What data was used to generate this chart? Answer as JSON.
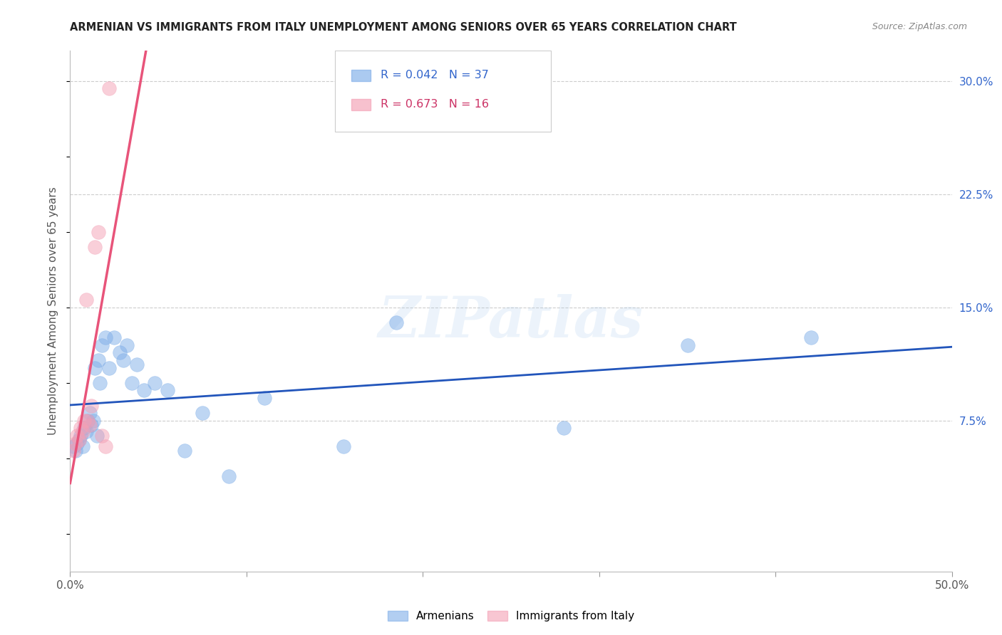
{
  "title": "ARMENIAN VS IMMIGRANTS FROM ITALY UNEMPLOYMENT AMONG SENIORS OVER 65 YEARS CORRELATION CHART",
  "source": "Source: ZipAtlas.com",
  "ylabel": "Unemployment Among Seniors over 65 years",
  "xlim": [
    0.0,
    0.5
  ],
  "ylim": [
    -0.025,
    0.32
  ],
  "xticks": [
    0.0,
    0.1,
    0.2,
    0.3,
    0.4,
    0.5
  ],
  "xticklabels": [
    "0.0%",
    "",
    "",
    "",
    "",
    "50.0%"
  ],
  "yticks_right": [
    0.075,
    0.15,
    0.225,
    0.3
  ],
  "yticklabels_right": [
    "7.5%",
    "15.0%",
    "22.5%",
    "30.0%"
  ],
  "armenians_x": [
    0.002,
    0.003,
    0.004,
    0.005,
    0.006,
    0.007,
    0.008,
    0.009,
    0.01,
    0.011,
    0.012,
    0.013,
    0.014,
    0.015,
    0.016,
    0.017,
    0.018,
    0.02,
    0.022,
    0.025,
    0.028,
    0.03,
    0.032,
    0.035,
    0.038,
    0.042,
    0.048,
    0.055,
    0.065,
    0.075,
    0.09,
    0.11,
    0.155,
    0.185,
    0.28,
    0.35,
    0.42
  ],
  "armenians_y": [
    0.058,
    0.055,
    0.06,
    0.062,
    0.065,
    0.058,
    0.07,
    0.068,
    0.075,
    0.08,
    0.072,
    0.075,
    0.11,
    0.065,
    0.115,
    0.1,
    0.125,
    0.13,
    0.11,
    0.13,
    0.12,
    0.115,
    0.125,
    0.1,
    0.112,
    0.095,
    0.1,
    0.095,
    0.055,
    0.08,
    0.038,
    0.09,
    0.058,
    0.14,
    0.07,
    0.125,
    0.13
  ],
  "italy_x": [
    0.002,
    0.003,
    0.004,
    0.005,
    0.006,
    0.007,
    0.008,
    0.009,
    0.01,
    0.011,
    0.012,
    0.014,
    0.016,
    0.018,
    0.02,
    0.022
  ],
  "italy_y": [
    0.055,
    0.06,
    0.065,
    0.062,
    0.07,
    0.068,
    0.075,
    0.155,
    0.075,
    0.072,
    0.085,
    0.19,
    0.2,
    0.065,
    0.058,
    0.295
  ],
  "armenians_R": 0.042,
  "armenians_N": 37,
  "italy_R": 0.673,
  "italy_N": 16,
  "color_armenians": "#7faee8",
  "color_italy": "#f4a0b5",
  "color_armenians_line": "#2255bb",
  "color_italy_line": "#e8547a",
  "watermark": "ZIPatlas",
  "background_color": "#ffffff",
  "grid_color": "#cccccc"
}
